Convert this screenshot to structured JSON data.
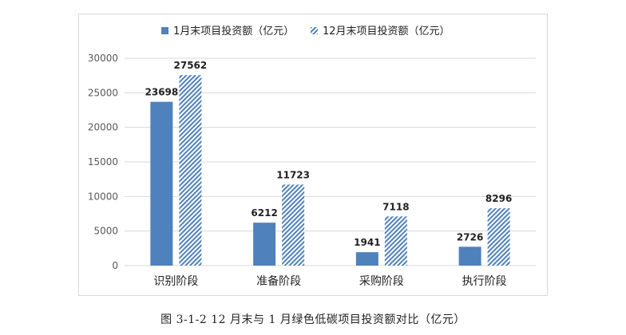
{
  "figure_caption": "图 3-1-2  12 月末与 1 月绿色低碳项目投资额对比（亿元）",
  "colors": {
    "series_1": "#4f81bd",
    "series_2_hatch": "#4f81bd",
    "axis_text": "#595959",
    "grid": "#d9d9d9"
  },
  "chart_data": {
    "type": "bar",
    "categories": [
      "识别阶段",
      "准备阶段",
      "采购阶段",
      "执行阶段"
    ],
    "series": [
      {
        "name": "1月末项目投资额（亿元）",
        "values": [
          23698,
          6212,
          1941,
          2726
        ],
        "pattern": "solid"
      },
      {
        "name": "12月末项目投资额（亿元）",
        "values": [
          27562,
          11723,
          7118,
          8296
        ],
        "pattern": "hatched"
      }
    ],
    "yticks": [
      "0",
      "5000",
      "10000",
      "15000",
      "20000",
      "25000",
      "30000"
    ],
    "ylim": [
      0,
      30000
    ],
    "grid": true,
    "legend_position": "top",
    "data_labels": true
  }
}
